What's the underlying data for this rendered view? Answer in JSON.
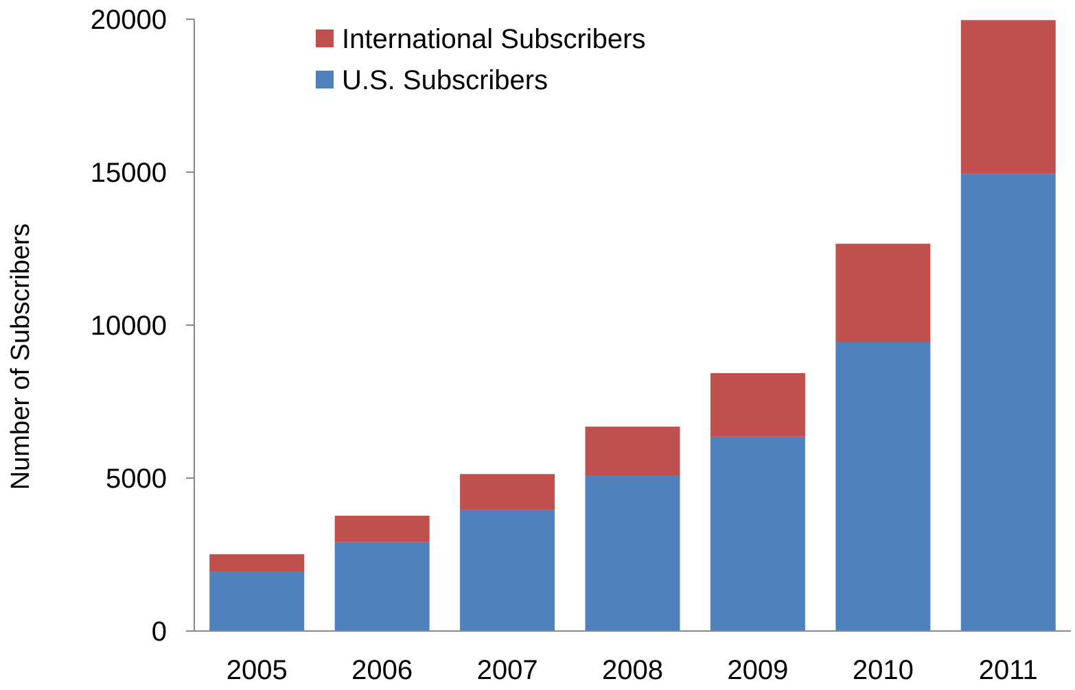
{
  "chart_data": {
    "type": "bar",
    "stacked": true,
    "title": "",
    "xlabel": "",
    "ylabel": "Number of Subscribers",
    "categories": [
      "2005",
      "2006",
      "2007",
      "2008",
      "2009",
      "2010",
      "2011"
    ],
    "series": [
      {
        "name": "U.S. Subscribers",
        "color": "#4F81BD",
        "values": [
          1950,
          2900,
          3950,
          5080,
          6350,
          9450,
          14950
        ]
      },
      {
        "name": "International Subscribers",
        "color": "#C0504D",
        "values": [
          560,
          870,
          1180,
          1600,
          2080,
          3210,
          5020
        ]
      }
    ],
    "ylim": [
      0,
      20000
    ],
    "yticks": [
      "0",
      "5000",
      "10000",
      "15000",
      "20000"
    ],
    "grid": false,
    "legend": {
      "position": "top-left-inside",
      "entries": [
        {
          "label": "International Subscribers",
          "color": "#C0504D"
        },
        {
          "label": "U.S. Subscribers",
          "color": "#4F81BD"
        }
      ]
    }
  }
}
